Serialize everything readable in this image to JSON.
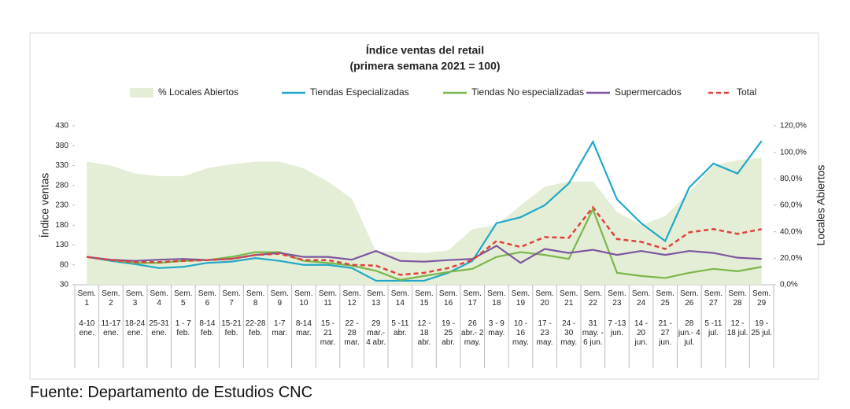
{
  "chart_data": {
    "type": "line",
    "title": "Índice ventas del retail",
    "subtitle": "(primera semana 2021 = 100)",
    "y_label": "Índice ventas",
    "y2_label": "Locales Abiertos",
    "categories": [
      "Sem. 1",
      "Sem. 2",
      "Sem. 3",
      "Sem. 4",
      "Sem. 5",
      "Sem. 6",
      "Sem. 7",
      "Sem. 8",
      "Sem. 9",
      "Sem. 10",
      "Sem. 11",
      "Sem. 12",
      "Sem. 13",
      "Sem. 14",
      "Sem. 15",
      "Sem. 16",
      "Sem. 17",
      "Sem. 18",
      "Sem. 19",
      "Sem. 20",
      "Sem. 21",
      "Sem. 22",
      "Sem. 23",
      "Sem. 24",
      "Sem. 25",
      "Sem. 26",
      "Sem. 27",
      "Sem. 28",
      "Sem. 29"
    ],
    "dates": [
      "4-10 ene.",
      "11-17 ene.",
      "18-24 ene.",
      "25-31 ene.",
      "1 - 7 feb.",
      "8-14 feb.",
      "15-21 feb.",
      "22-28 feb.",
      "1-7 mar.",
      "8-14 mar.",
      "15 - 21 mar.",
      "22 - 28 mar.",
      "29 mar.- 4 abr.",
      "5 -11 abr.",
      "12 - 18 abr.",
      "19 - 25 abr.",
      "26 abr.- 2 may.",
      "3 - 9 may.",
      "10 - 16 may.",
      "17 - 23 may.",
      "24 - 30 may.",
      "31 may. - 6 jun.",
      "7 -13 jun.",
      "14 - 20 jun.",
      "21 - 27 jun.",
      "28 jun.- 4 jul.",
      "5 -11 jul.",
      "12 - 18 jul.",
      "19 - 25 jul."
    ],
    "series": [
      {
        "name": "% Locales Abiertos",
        "kind": "area",
        "axis": "y2",
        "color": "#e4eed6",
        "values": [
          93,
          90,
          84,
          82,
          82,
          88,
          91,
          93,
          93,
          88,
          78,
          65,
          25,
          25,
          24,
          26,
          42,
          45,
          60,
          74,
          78,
          78,
          55,
          45,
          52,
          70,
          90,
          94,
          96
        ]
      },
      {
        "name": "Tiendas Especializadas",
        "color": "#1fa8c9",
        "values": [
          100,
          90,
          82,
          72,
          75,
          85,
          88,
          97,
          90,
          80,
          80,
          72,
          40,
          40,
          40,
          60,
          90,
          185,
          200,
          230,
          285,
          390,
          245,
          185,
          140,
          275,
          335,
          310,
          392
        ]
      },
      {
        "name": "Tiendas No especializadas",
        "color": "#7ab648",
        "values": [
          100,
          92,
          85,
          85,
          90,
          92,
          100,
          112,
          112,
          90,
          85,
          78,
          65,
          42,
          52,
          62,
          70,
          100,
          112,
          105,
          95,
          220,
          60,
          52,
          47,
          60,
          70,
          64,
          75
        ]
      },
      {
        "name": "Supermercados",
        "color": "#7d55a0",
        "values": [
          100,
          93,
          90,
          93,
          95,
          92,
          95,
          105,
          110,
          100,
          100,
          93,
          115,
          90,
          88,
          92,
          95,
          128,
          85,
          120,
          110,
          118,
          105,
          115,
          105,
          115,
          110,
          98,
          95
        ]
      },
      {
        "name": "Total",
        "dashed": true,
        "color": "#e0413c",
        "values": [
          100,
          92,
          87,
          87,
          90,
          92,
          95,
          105,
          108,
          92,
          92,
          80,
          78,
          55,
          60,
          72,
          92,
          140,
          125,
          150,
          148,
          225,
          145,
          138,
          120,
          162,
          170,
          158,
          170
        ]
      }
    ],
    "ylim": [
      30,
      430
    ],
    "yticks": [
      30,
      80,
      130,
      180,
      230,
      280,
      330,
      380,
      430
    ],
    "y2lim": [
      0,
      120
    ],
    "y2ticks": [
      {
        "value": 0,
        "label": "0,0%"
      },
      {
        "value": 20,
        "label": "20,0%"
      },
      {
        "value": 40,
        "label": "40,0%"
      },
      {
        "value": 60,
        "label": "60,0%"
      },
      {
        "value": 80,
        "label": "80,0%"
      },
      {
        "value": 100,
        "label": "100,0%"
      },
      {
        "value": 120,
        "label": "120,0%"
      }
    ],
    "grid": false,
    "legend": "top"
  },
  "source": "Fuente: Departamento de Estudios CNC"
}
